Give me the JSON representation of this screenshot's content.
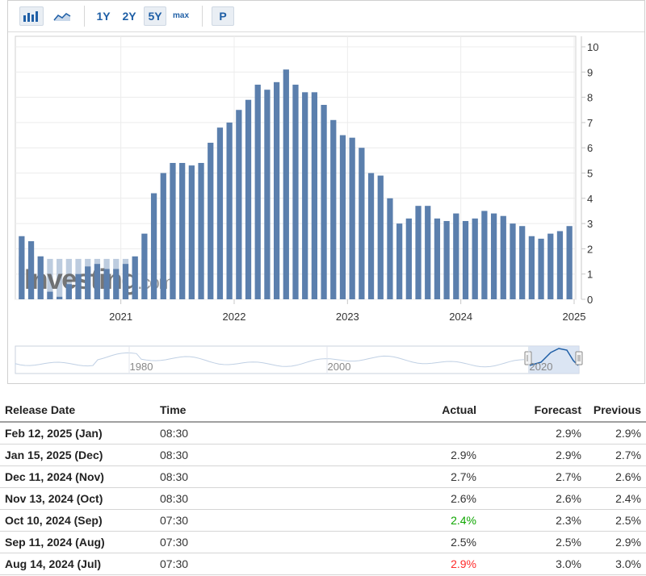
{
  "toolbar": {
    "ranges": [
      "1Y",
      "2Y",
      "5Y",
      "max"
    ],
    "active_range": "5Y",
    "p_label": "P"
  },
  "colors": {
    "bar": "#5b7fad",
    "bar_bg": "#b6c6db",
    "accent": "#1f5fa6",
    "positive": "#0ea600",
    "negative": "#ff2b2b"
  },
  "watermark": {
    "brand": "Investing",
    "suffix": ".com"
  },
  "chart_data": {
    "type": "bar",
    "x": [
      "2020-02",
      "2020-03",
      "2020-04",
      "2020-05",
      "2020-06",
      "2020-07",
      "2020-08",
      "2020-09",
      "2020-10",
      "2020-11",
      "2020-12",
      "2021-01",
      "2021-02",
      "2021-03",
      "2021-04",
      "2021-05",
      "2021-06",
      "2021-07",
      "2021-08",
      "2021-09",
      "2021-10",
      "2021-11",
      "2021-12",
      "2022-01",
      "2022-02",
      "2022-03",
      "2022-04",
      "2022-05",
      "2022-06",
      "2022-07",
      "2022-08",
      "2022-09",
      "2022-10",
      "2022-11",
      "2022-12",
      "2023-01",
      "2023-02",
      "2023-03",
      "2023-04",
      "2023-05",
      "2023-06",
      "2023-07",
      "2023-08",
      "2023-09",
      "2023-10",
      "2023-11",
      "2023-12",
      "2024-01",
      "2024-02",
      "2024-03",
      "2024-04",
      "2024-05",
      "2024-06",
      "2024-07",
      "2024-08",
      "2024-09",
      "2024-10",
      "2024-11",
      "2024-12"
    ],
    "values": [
      2.5,
      2.3,
      1.7,
      0.3,
      0.1,
      0.6,
      1.0,
      1.3,
      1.4,
      1.2,
      1.2,
      1.4,
      1.7,
      2.6,
      4.2,
      5.0,
      5.4,
      5.4,
      5.3,
      5.4,
      6.2,
      6.8,
      7.0,
      7.5,
      7.9,
      8.5,
      8.3,
      8.6,
      9.1,
      8.5,
      8.2,
      8.2,
      7.7,
      7.1,
      6.5,
      6.4,
      6.0,
      5.0,
      4.9,
      4.0,
      3.0,
      3.2,
      3.7,
      3.7,
      3.2,
      3.1,
      3.4,
      3.1,
      3.2,
      3.5,
      3.4,
      3.3,
      3.0,
      2.9,
      2.5,
      2.4,
      2.6,
      2.7,
      2.9
    ],
    "x_tick_labels": [
      "2021",
      "2022",
      "2023",
      "2024",
      "2025"
    ],
    "y_ticks": [
      0,
      1,
      2,
      3,
      4,
      5,
      6,
      7,
      8,
      9,
      10
    ],
    "ylim": [
      0,
      10
    ],
    "grid": true,
    "navigator_labels": [
      "1980",
      "2000",
      "2020"
    ]
  },
  "table": {
    "headers": {
      "release_date": "Release Date",
      "time": "Time",
      "actual": "Actual",
      "forecast": "Forecast",
      "previous": "Previous"
    },
    "rows": [
      {
        "date": "Feb 12, 2025 (Jan)",
        "time": "08:30",
        "actual": "",
        "actual_status": "",
        "forecast": "2.9%",
        "previous": "2.9%"
      },
      {
        "date": "Jan 15, 2025 (Dec)",
        "time": "08:30",
        "actual": "2.9%",
        "actual_status": "",
        "forecast": "2.9%",
        "previous": "2.7%"
      },
      {
        "date": "Dec 11, 2024 (Nov)",
        "time": "08:30",
        "actual": "2.7%",
        "actual_status": "",
        "forecast": "2.7%",
        "previous": "2.6%"
      },
      {
        "date": "Nov 13, 2024 (Oct)",
        "time": "08:30",
        "actual": "2.6%",
        "actual_status": "",
        "forecast": "2.6%",
        "previous": "2.4%"
      },
      {
        "date": "Oct 10, 2024 (Sep)",
        "time": "07:30",
        "actual": "2.4%",
        "actual_status": "pos",
        "forecast": "2.3%",
        "previous": "2.5%"
      },
      {
        "date": "Sep 11, 2024 (Aug)",
        "time": "07:30",
        "actual": "2.5%",
        "actual_status": "",
        "forecast": "2.5%",
        "previous": "2.9%"
      },
      {
        "date": "Aug 14, 2024 (Jul)",
        "time": "07:30",
        "actual": "2.9%",
        "actual_status": "neg",
        "forecast": "3.0%",
        "previous": "3.0%"
      }
    ]
  }
}
